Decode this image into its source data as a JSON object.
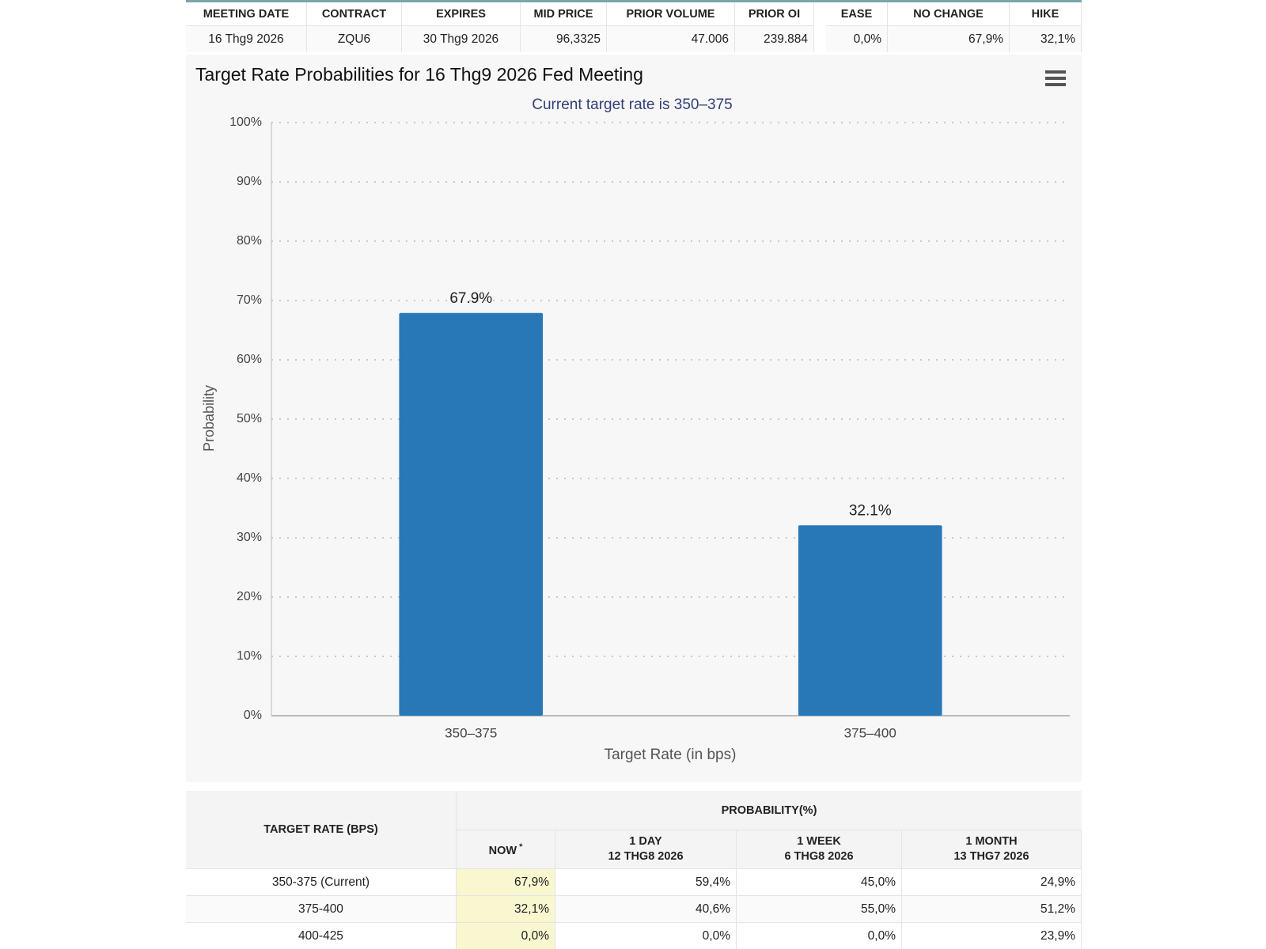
{
  "top_table": {
    "headers": [
      "MEETING DATE",
      "CONTRACT",
      "EXPIRES",
      "MID PRICE",
      "PRIOR VOLUME",
      "PRIOR OI",
      "EASE",
      "NO CHANGE",
      "HIKE"
    ],
    "row": [
      "16 Thg9 2026",
      "ZQU6",
      "30 Thg9 2026",
      "96,3325",
      "47.006",
      "239.884",
      "0,0%",
      "67,9%",
      "32,1%"
    ]
  },
  "chart_data": {
    "type": "bar",
    "title": "Target Rate Probabilities for 16 Thg9 2026 Fed Meeting",
    "subtitle": "Current target rate is 350–375",
    "categories": [
      "350–375",
      "375–400"
    ],
    "values": [
      67.9,
      32.1
    ],
    "value_labels": [
      "67.9%",
      "32.1%"
    ],
    "color": "#2878b8",
    "x_label": "Target Rate (in bps)",
    "y_label": "Probability",
    "ylim": [
      0,
      100
    ],
    "yticks": [
      {
        "value": 0,
        "label": "0%"
      },
      {
        "value": 10,
        "label": "10%"
      },
      {
        "value": 20,
        "label": "20%"
      },
      {
        "value": 30,
        "label": "30%"
      },
      {
        "value": 40,
        "label": "40%"
      },
      {
        "value": 50,
        "label": "50%"
      },
      {
        "value": 60,
        "label": "60%"
      },
      {
        "value": 70,
        "label": "70%"
      },
      {
        "value": 80,
        "label": "80%"
      },
      {
        "value": 90,
        "label": "90%"
      },
      {
        "value": 100,
        "label": "100%"
      }
    ],
    "grid": true
  },
  "bottom_table": {
    "row_header": "TARGET RATE (BPS)",
    "group_header": "PROBABILITY(%)",
    "columns": [
      [
        "NOW"
      ],
      [
        "1 DAY",
        "12 THG8 2026"
      ],
      [
        "1 WEEK",
        "6 THG8 2026"
      ],
      [
        "1 MONTH",
        "13 THG7 2026"
      ]
    ],
    "now_marker": "*",
    "rows": [
      [
        "350-375 (Current)",
        "67,9%",
        "59,4%",
        "45,0%",
        "24,9%"
      ],
      [
        "375-400",
        "32,1%",
        "40,6%",
        "55,0%",
        "51,2%"
      ],
      [
        "400-425",
        "0,0%",
        "0,0%",
        "0,0%",
        "23,9%"
      ]
    ]
  }
}
